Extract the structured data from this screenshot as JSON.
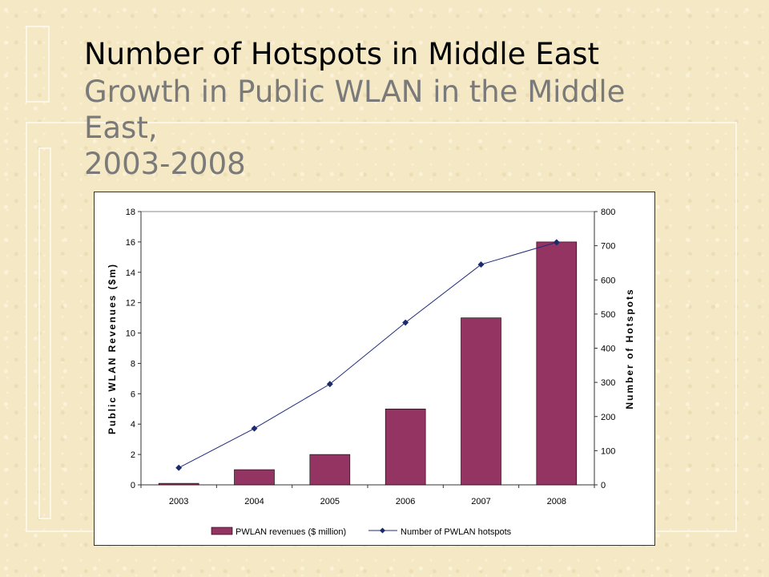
{
  "slide": {
    "title": "Number of Hotspots in Middle East",
    "subtitle": "Growth in Public WLAN in the Middle East,",
    "subtitle_years": "2003-2008"
  },
  "colors": {
    "bar": "#943463",
    "line": "#1f2b7a",
    "marker": "#1a2a6c",
    "subtitle": "#7a7a7a",
    "background": "#f5e8c4"
  },
  "chart_data": {
    "type": "bar",
    "categories": [
      "2003",
      "2004",
      "2005",
      "2006",
      "2007",
      "2008"
    ],
    "series": [
      {
        "name": "PWLAN revenues ($ million)",
        "type": "bar",
        "axis": "left",
        "values": [
          0.1,
          1,
          2,
          5,
          11,
          16
        ]
      },
      {
        "name": "Number of PWLAN hotspots",
        "type": "line",
        "axis": "right",
        "values": [
          50,
          165,
          295,
          475,
          645,
          710
        ]
      }
    ],
    "ylabel": "Public WLAN Revenues ($m)",
    "y2label": "Number of Hotspots",
    "ylim": [
      0,
      18
    ],
    "y2lim": [
      0,
      800
    ],
    "yticks": [
      "0",
      "2",
      "4",
      "6",
      "8",
      "10",
      "12",
      "14",
      "16",
      "18"
    ],
    "y2ticks": [
      "0",
      "100",
      "200",
      "300",
      "400",
      "500",
      "600",
      "700",
      "800"
    ],
    "grid": false,
    "legend": "bottom"
  }
}
